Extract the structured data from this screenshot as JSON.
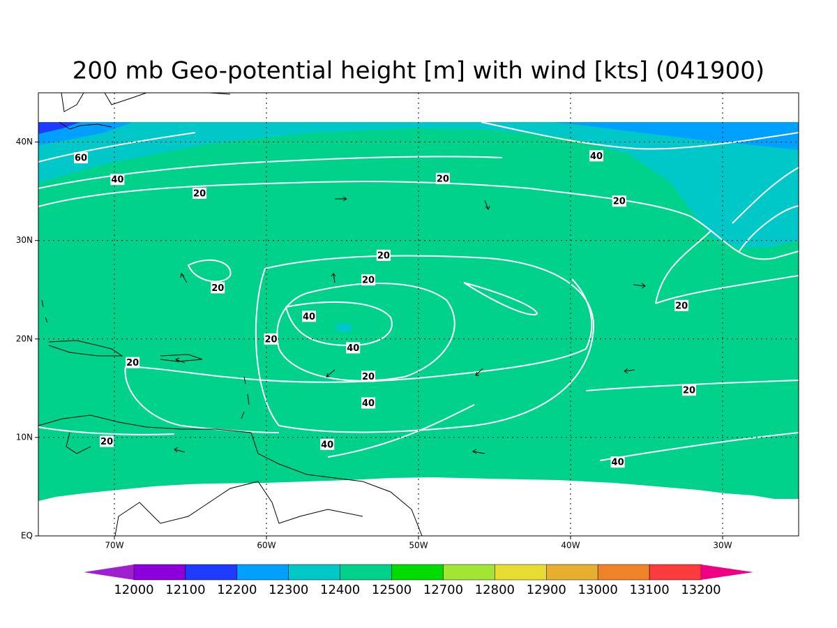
{
  "chart_data": {
    "type": "map",
    "title": "200 mb Geo-potential height [m] with wind [kts] (041900)",
    "xlim": [
      -75,
      -25
    ],
    "ylim": [
      0,
      45
    ],
    "xticks": [
      {
        "value": -70,
        "label": "70W"
      },
      {
        "value": -60,
        "label": "60W"
      },
      {
        "value": -50,
        "label": "50W"
      },
      {
        "value": -40,
        "label": "40W"
      },
      {
        "value": -30,
        "label": "30W"
      }
    ],
    "yticks": [
      {
        "value": 0,
        "label": "EQ"
      },
      {
        "value": 10,
        "label": "10N"
      },
      {
        "value": 20,
        "label": "20N"
      },
      {
        "value": 30,
        "label": "30N"
      },
      {
        "value": 40,
        "label": "40N"
      }
    ],
    "grid": true,
    "colorbar": {
      "levels": [
        12000,
        12100,
        12200,
        12300,
        12400,
        12500,
        12700,
        12800,
        12900,
        13000,
        13100,
        13200
      ],
      "colors": [
        "#a020d0",
        "#8c00dc",
        "#1e3cff",
        "#00a0ff",
        "#00c8c8",
        "#00d28c",
        "#00dc00",
        "#a0e632",
        "#e6dc32",
        "#e6af2d",
        "#f08228",
        "#fa3c3c",
        "#f00082"
      ]
    },
    "contour_labels": [
      {
        "value": 60,
        "lon": -72.2,
        "lat": 38.4
      },
      {
        "value": 40,
        "lon": -69.8,
        "lat": 36.2
      },
      {
        "value": 20,
        "lon": -64.4,
        "lat": 34.8
      },
      {
        "value": 20,
        "lon": -48.4,
        "lat": 36.3
      },
      {
        "value": 40,
        "lon": -38.3,
        "lat": 38.6
      },
      {
        "value": 20,
        "lon": -36.8,
        "lat": 34.0
      },
      {
        "value": 20,
        "lon": -52.3,
        "lat": 28.5
      },
      {
        "value": 20,
        "lon": -63.2,
        "lat": 25.2
      },
      {
        "value": 20,
        "lon": -53.3,
        "lat": 26.0
      },
      {
        "value": 40,
        "lon": -57.2,
        "lat": 22.3
      },
      {
        "value": 40,
        "lon": -54.3,
        "lat": 19.1
      },
      {
        "value": 20,
        "lon": -59.7,
        "lat": 20.0
      },
      {
        "value": 20,
        "lon": -68.8,
        "lat": 17.6
      },
      {
        "value": 20,
        "lon": -32.7,
        "lat": 23.4
      },
      {
        "value": 20,
        "lon": -53.3,
        "lat": 16.2
      },
      {
        "value": 20,
        "lon": -32.2,
        "lat": 14.8
      },
      {
        "value": 40,
        "lon": -53.3,
        "lat": 13.5
      },
      {
        "value": 40,
        "lon": -56.0,
        "lat": 9.3
      },
      {
        "value": 20,
        "lon": -70.5,
        "lat": 9.6
      },
      {
        "value": 40,
        "lon": -36.9,
        "lat": 7.5
      }
    ]
  }
}
